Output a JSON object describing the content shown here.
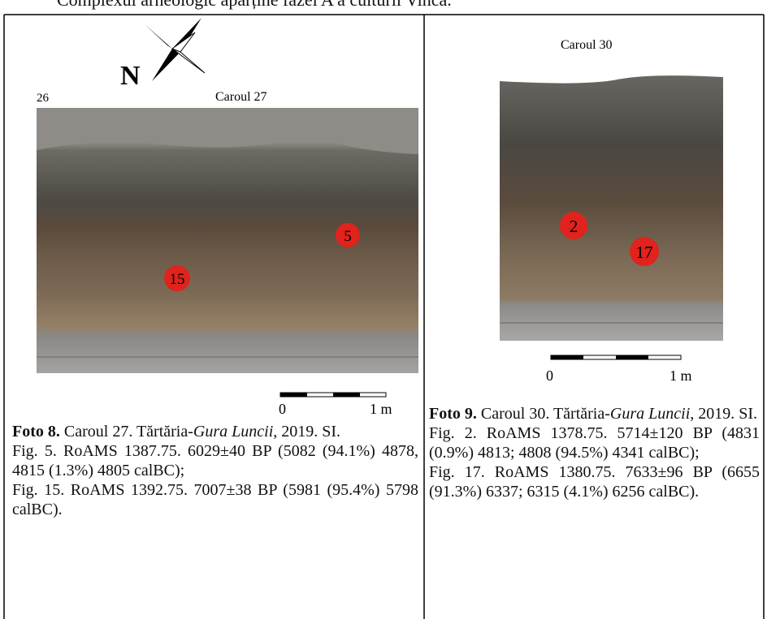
{
  "header": {
    "text": "Complexul arheologic aparține fazei A a culturii Vinča."
  },
  "left": {
    "compass_label": "N",
    "corner_label": "26",
    "photo_title": "Caroul 27",
    "markers": [
      "5",
      "15"
    ],
    "scale": {
      "start": "0",
      "end": "1 m"
    },
    "caption": {
      "label": "Foto 8.",
      "text": "Caroul 27. Tărtăria-",
      "italic": "Gura Luncii",
      "after": ", 2019. SI.",
      "lines": [
        "Fig. 5. RoAMS 1387.75. 6029±40 BP (5082 (94.1%) 4878, 4815 (1.3%) 4805 calBC);",
        "Fig. 15. RoAMS 1392.75. 7007±38 BP (5981 (95.4%) 5798 calBC)."
      ]
    }
  },
  "right": {
    "photo_title": "Caroul 30",
    "markers": [
      "2",
      "17"
    ],
    "scale": {
      "start": "0",
      "end": "1 m"
    },
    "caption": {
      "label": "Foto 9.",
      "text": "Caroul 30. Tărtăria-",
      "italic": "Gura Luncii",
      "after": ", 2019. SI.",
      "lines": [
        "Fig. 2. RoAMS 1378.75. 5714±120 BP (4831 (0.9%) 4813; 4808 (94.5%) 4341 calBC);",
        "Fig. 17. RoAMS 1380.75. 7633±96 BP (6655 (91.3%) 6337; 6315 (4.1%) 6256 calBC)."
      ]
    }
  }
}
